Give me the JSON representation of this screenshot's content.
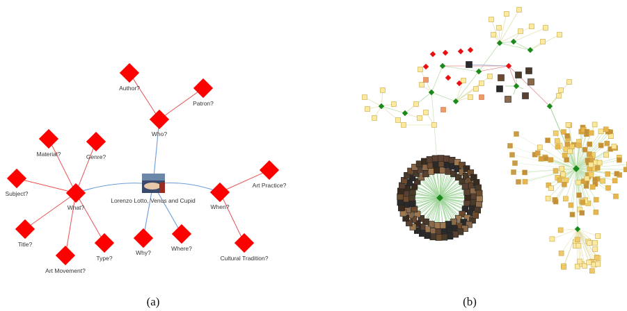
{
  "panels": [
    {
      "caption": "(a)",
      "center": "Lorenzo Lotto, Venus and Cupid",
      "nodes": [
        {
          "label": "Who?",
          "children": [
            "Author?",
            "Patron?"
          ]
        },
        {
          "label": "What?",
          "children": [
            "Material?",
            "Genre?",
            "Subject?",
            "Title?",
            "Art Movement?",
            "Type?"
          ]
        },
        {
          "label": "Why?",
          "children": []
        },
        {
          "label": "Where?",
          "children": []
        },
        {
          "label": "When?",
          "children": [
            "Art Practice?",
            "Cultural Tradition?"
          ]
        }
      ]
    },
    {
      "caption": "(b)"
    }
  ]
}
